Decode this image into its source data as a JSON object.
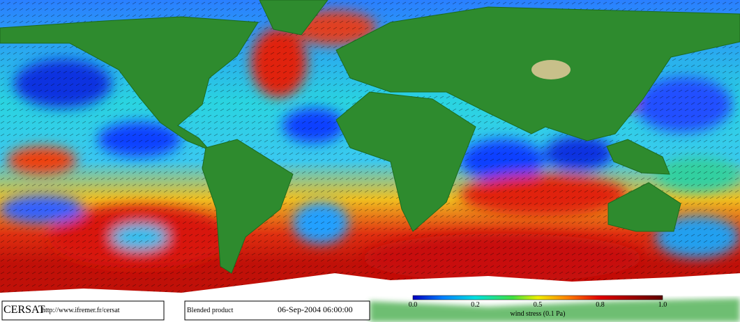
{
  "logo": {
    "name": "CERSAT",
    "url": "http://www.ifremer.fr/cersat"
  },
  "product": {
    "name": "Blended product",
    "datetime": "06-Sep-2004 06:00:00"
  },
  "colorbar": {
    "label": "wind stress (0.1 Pa)",
    "ticks": [
      "0.0",
      "0.2",
      "0.5",
      "0.8",
      "1.0"
    ]
  }
}
